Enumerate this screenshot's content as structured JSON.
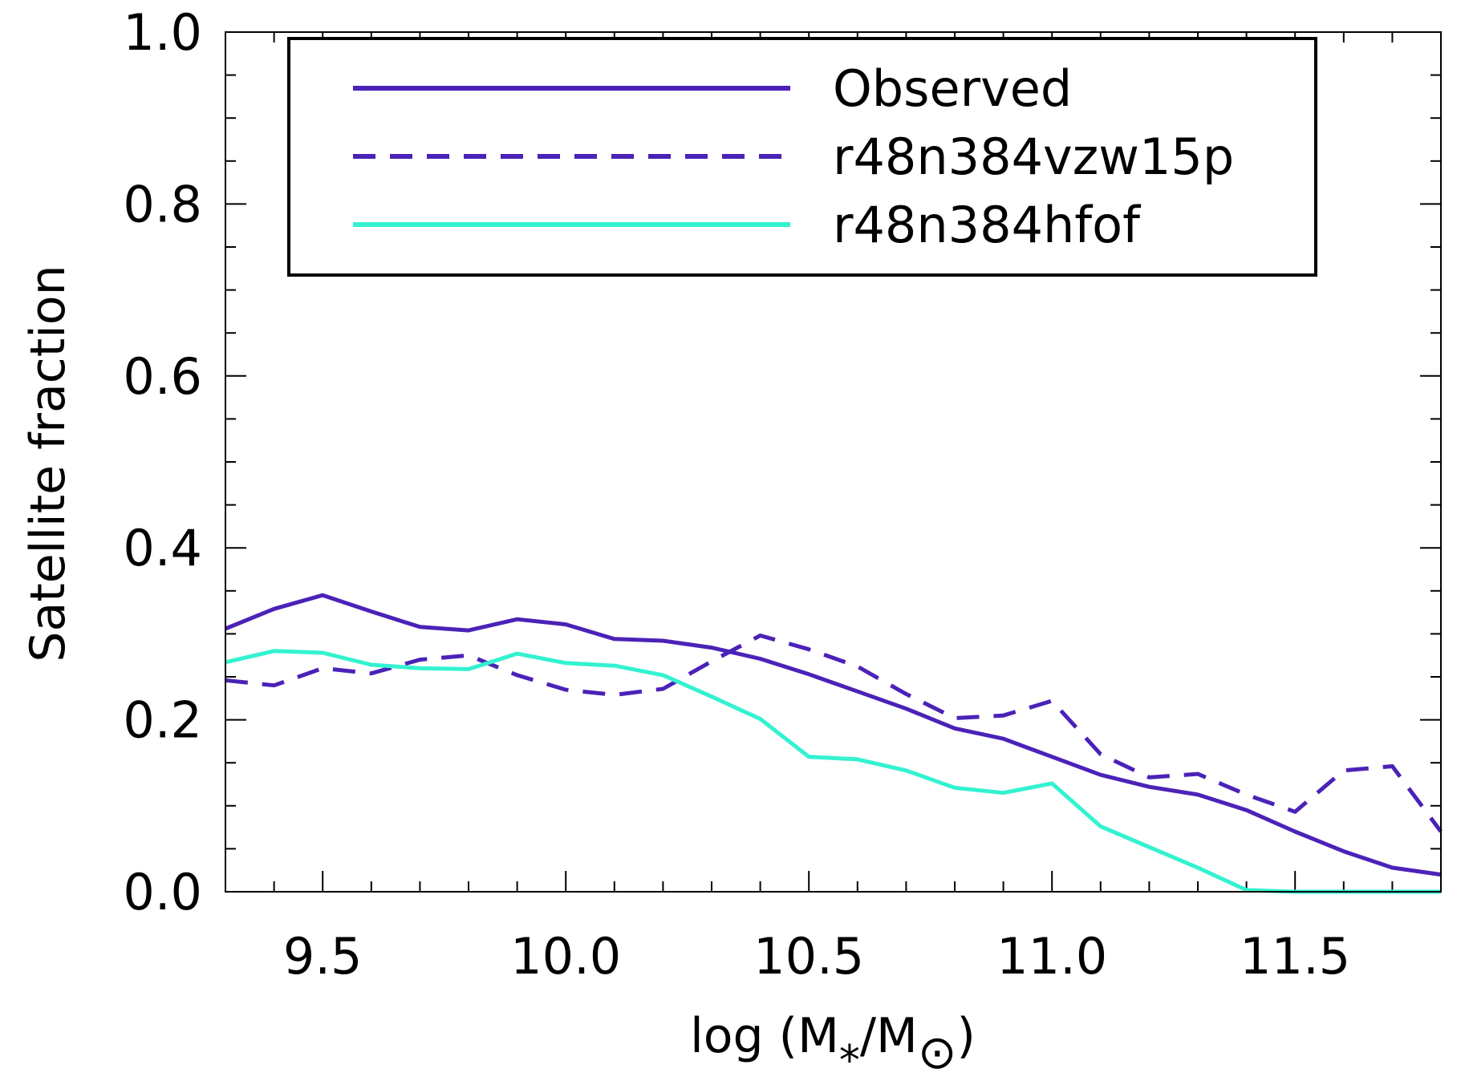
{
  "chart_data": {
    "type": "line",
    "xlabel": "log (M",
    "xlabel_sub": "*",
    "xlabel_mid": "/M",
    "xlabel_symbol": "⊙",
    "xlabel_end": ")",
    "ylabel": "Satellite fraction",
    "xlim": [
      9.3,
      11.8
    ],
    "ylim": [
      0.0,
      1.0
    ],
    "xticks": [
      9.5,
      10.0,
      10.5,
      11.0,
      11.5
    ],
    "xtick_labels": [
      "9.5",
      "10.0",
      "10.5",
      "11.0",
      "11.5"
    ],
    "yticks": [
      0.0,
      0.2,
      0.4,
      0.6,
      0.8,
      1.0
    ],
    "ytick_labels": [
      "0.0",
      "0.2",
      "0.4",
      "0.6",
      "0.8",
      "1.0"
    ],
    "legend_position": "top",
    "series": [
      {
        "name": "Observed",
        "color": "#4b22b8",
        "dash": "solid",
        "x": [
          9.3,
          9.4,
          9.5,
          9.6,
          9.7,
          9.8,
          9.9,
          10.0,
          10.1,
          10.2,
          10.3,
          10.4,
          10.5,
          10.6,
          10.7,
          10.8,
          10.9,
          11.0,
          11.1,
          11.2,
          11.3,
          11.4,
          11.5,
          11.6,
          11.7,
          11.8
        ],
        "y": [
          0.306,
          0.329,
          0.345,
          0.326,
          0.308,
          0.304,
          0.317,
          0.311,
          0.294,
          0.292,
          0.284,
          0.271,
          0.253,
          0.233,
          0.213,
          0.19,
          0.178,
          0.157,
          0.136,
          0.122,
          0.113,
          0.095,
          0.07,
          0.047,
          0.028,
          0.02
        ]
      },
      {
        "name": "r48n384vzw15p",
        "color": "#4b22b8",
        "dash": "dashed",
        "x": [
          9.3,
          9.4,
          9.5,
          9.6,
          9.7,
          9.8,
          9.9,
          10.0,
          10.1,
          10.2,
          10.3,
          10.4,
          10.5,
          10.6,
          10.7,
          10.8,
          10.9,
          11.0,
          11.1,
          11.2,
          11.3,
          11.4,
          11.5,
          11.6,
          11.7,
          11.8
        ],
        "y": [
          0.246,
          0.24,
          0.26,
          0.254,
          0.27,
          0.275,
          0.252,
          0.235,
          0.229,
          0.236,
          0.268,
          0.298,
          0.282,
          0.262,
          0.23,
          0.202,
          0.205,
          0.222,
          0.16,
          0.133,
          0.137,
          0.113,
          0.093,
          0.141,
          0.146,
          0.07
        ]
      },
      {
        "name": "r48n384hfof",
        "color": "#33f2d0",
        "dash": "solid",
        "x": [
          9.3,
          9.4,
          9.5,
          9.6,
          9.7,
          9.8,
          9.9,
          10.0,
          10.1,
          10.2,
          10.3,
          10.4,
          10.5,
          10.6,
          10.7,
          10.8,
          10.9,
          11.0,
          11.1,
          11.2,
          11.3,
          11.4,
          11.5,
          11.6,
          11.7,
          11.8
        ],
        "y": [
          0.267,
          0.28,
          0.278,
          0.264,
          0.26,
          0.259,
          0.277,
          0.266,
          0.263,
          0.252,
          0.227,
          0.201,
          0.157,
          0.154,
          0.141,
          0.121,
          0.115,
          0.126,
          0.076,
          0.052,
          0.028,
          0.002,
          0.0,
          0.0,
          0.0,
          0.0
        ]
      }
    ]
  }
}
